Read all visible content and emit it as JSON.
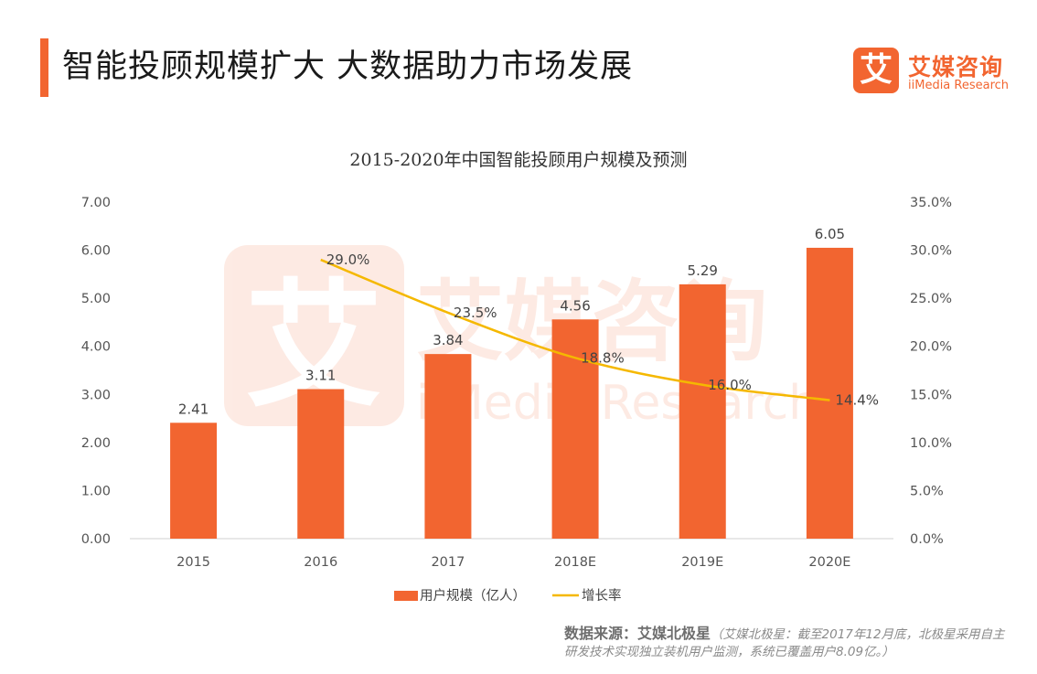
{
  "header": {
    "title": "智能投顾规模扩大  大数据助力市场发展"
  },
  "logo": {
    "mark": "艾",
    "name": "艾媒咨询",
    "subtitle": "iiMedia Research"
  },
  "watermark": {
    "mark": "艾",
    "name": "艾媒咨询",
    "subtitle": "iiMedia Research"
  },
  "colors": {
    "accent": "#f26530",
    "bar": "#f26530",
    "line": "#f5b800"
  },
  "chart_data": {
    "type": "bar",
    "title": "2015-2020年中国智能投顾用户规模及预测",
    "categories": [
      "2015",
      "2016",
      "2017",
      "2018E",
      "2019E",
      "2020E"
    ],
    "series": [
      {
        "name": "用户规模（亿人）",
        "type": "bar",
        "axis": "left",
        "values": [
          2.41,
          3.11,
          3.84,
          4.56,
          5.29,
          6.05
        ],
        "labels": [
          "2.41",
          "3.11",
          "3.84",
          "4.56",
          "5.29",
          "6.05"
        ]
      },
      {
        "name": "增长率",
        "type": "line",
        "axis": "right",
        "values": [
          null,
          29.0,
          23.5,
          18.8,
          16.0,
          14.4
        ],
        "labels": [
          "",
          "29.0%",
          "23.5%",
          "18.8%",
          "16.0%",
          "14.4%"
        ]
      }
    ],
    "y_left": {
      "min": 0,
      "max": 7,
      "ticks": [
        "0.00",
        "1.00",
        "2.00",
        "3.00",
        "4.00",
        "5.00",
        "6.00",
        "7.00"
      ]
    },
    "y_right": {
      "min": 0,
      "max": 35,
      "ticks": [
        "0.0%",
        "5.0%",
        "10.0%",
        "15.0%",
        "20.0%",
        "25.0%",
        "30.0%",
        "35.0%"
      ]
    },
    "legend_position": "bottom-center",
    "grid": false
  },
  "source": {
    "label": "数据来源：艾媒北极星",
    "note": "（艾媒北极星：截至2017年12月底，北极星采用自主研发技术实现独立装机用户监测，系统已覆盖用户8.09亿。）"
  }
}
